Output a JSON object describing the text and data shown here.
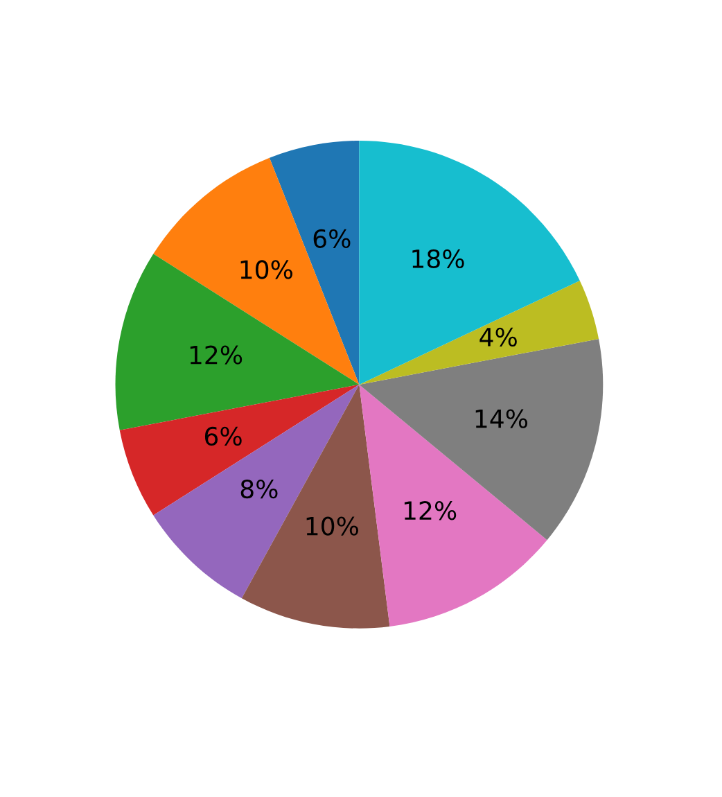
{
  "chart_data": {
    "type": "pie",
    "categories": [
      null,
      null,
      null,
      null,
      null,
      null,
      null,
      null,
      null,
      null
    ],
    "values": [
      6,
      10,
      12,
      6,
      8,
      10,
      12,
      14,
      4,
      18
    ],
    "colors": [
      "#1f77b4",
      "#ff7f0e",
      "#2ca02c",
      "#d62728",
      "#9467bd",
      "#8c564b",
      "#e377c2",
      "#7f7f7f",
      "#bcbd22",
      "#17becf"
    ],
    "value_labels": [
      "6%",
      "10%",
      "12%",
      "6%",
      "8%",
      "10%",
      "12%",
      "14%",
      "4%",
      "18%"
    ]
  }
}
